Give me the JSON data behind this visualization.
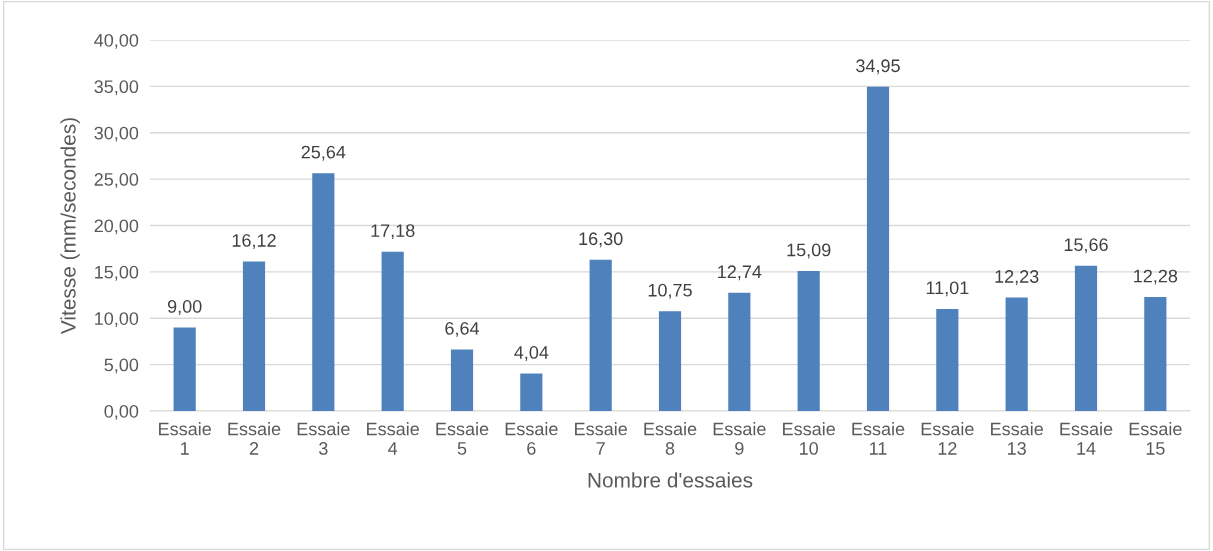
{
  "chart_data": {
    "type": "bar",
    "xlabel": "Nombre d'essaies",
    "ylabel": "Vitesse (mm/secondes)",
    "categories": [
      "Essaie 1",
      "Essaie 2",
      "Essaie 3",
      "Essaie 4",
      "Essaie 5",
      "Essaie 6",
      "Essaie 7",
      "Essaie 8",
      "Essaie 9",
      "Essaie 10",
      "Essaie 11",
      "Essaie 12",
      "Essaie 13",
      "Essaie 14",
      "Essaie 15"
    ],
    "values": [
      9.0,
      16.12,
      25.64,
      17.18,
      6.64,
      4.04,
      16.3,
      10.75,
      12.74,
      15.09,
      34.95,
      11.01,
      12.23,
      15.66,
      12.28
    ],
    "value_labels": [
      "9,00",
      "16,12",
      "25,64",
      "17,18",
      "6,64",
      "4,04",
      "16,30",
      "10,75",
      "12,74",
      "15,09",
      "34,95",
      "11,01",
      "12,23",
      "15,66",
      "12,28"
    ],
    "color": "#4f81bd",
    "ylim": [
      0,
      40
    ],
    "yticks": [
      {
        "value": 0,
        "label": "0,00"
      },
      {
        "value": 5,
        "label": "5,00"
      },
      {
        "value": 10,
        "label": "10,00"
      },
      {
        "value": 15,
        "label": "15,00"
      },
      {
        "value": 20,
        "label": "20,00"
      },
      {
        "value": 25,
        "label": "25,00"
      },
      {
        "value": 30,
        "label": "30,00"
      },
      {
        "value": 35,
        "label": "35,00"
      },
      {
        "value": 40,
        "label": "40,00"
      }
    ],
    "grid": "y",
    "legend": false
  }
}
